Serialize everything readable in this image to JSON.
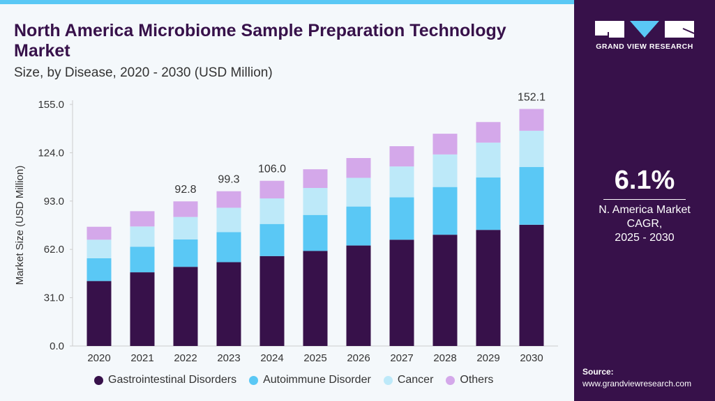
{
  "title": "North America Microbiome Sample Preparation Technology Market",
  "subtitle": "Size, by Disease, 2020 - 2030 (USD Million)",
  "brand": {
    "name": "GRAND VIEW RESEARCH"
  },
  "cagr": {
    "value": "6.1%",
    "label": "N. America Market\nCAGR,\n2025 - 2030"
  },
  "source": {
    "label": "Source:",
    "url": "www.grandviewresearch.com"
  },
  "chart_data": {
    "type": "bar",
    "stacked": true,
    "title": "North America Microbiome Sample Preparation Technology Market",
    "subtitle": "Size, by Disease, 2020 - 2030 (USD Million)",
    "xlabel": "",
    "ylabel": "Market Size (USD Million)",
    "ylim": [
      0,
      155
    ],
    "yticks": [
      "0.0",
      "31.0",
      "62.0",
      "93.0",
      "124.0",
      "155.0"
    ],
    "grid": false,
    "legend": "bottom",
    "categories": [
      "2020",
      "2021",
      "2022",
      "2023",
      "2024",
      "2025",
      "2026",
      "2027",
      "2028",
      "2029",
      "2030"
    ],
    "series": [
      {
        "name": "Gastrointestinal Disorders",
        "color": "#37114a",
        "values": [
          41.7,
          47.3,
          50.8,
          53.8,
          57.7,
          61.0,
          64.5,
          68.2,
          71.4,
          74.5,
          77.8
        ]
      },
      {
        "name": "Autoimmune Disorder",
        "color": "#5ac8f5",
        "values": [
          14.6,
          16.4,
          17.6,
          19.3,
          20.6,
          23.1,
          25.0,
          27.2,
          30.6,
          33.7,
          37.1
        ]
      },
      {
        "name": "Cancer",
        "color": "#bde9f9",
        "values": [
          11.9,
          13.0,
          14.4,
          15.6,
          16.4,
          17.3,
          18.4,
          19.8,
          20.9,
          22.3,
          23.2
        ]
      },
      {
        "name": "Others",
        "color": "#d4a8ea",
        "values": [
          8.3,
          9.8,
          10.0,
          10.6,
          11.3,
          12.0,
          12.7,
          13.0,
          13.3,
          13.2,
          14.0
        ]
      }
    ],
    "data_labels": {
      "2022": "92.8",
      "2023": "99.3",
      "2024": "106.0",
      "2030": "152.1"
    }
  }
}
